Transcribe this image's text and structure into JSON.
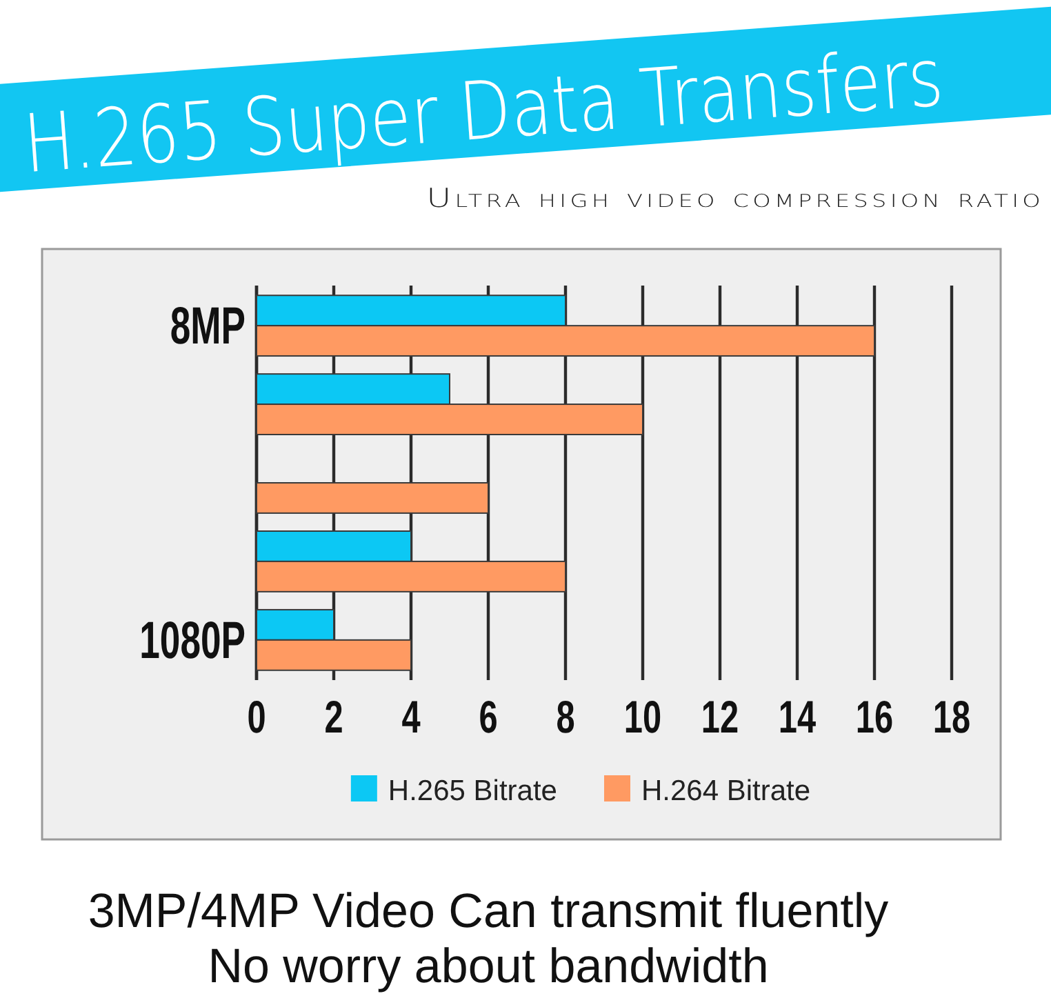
{
  "chart_data": {
    "type": "bar",
    "orientation": "horizontal",
    "title": "H.265 Super Data Transfers",
    "subtitle": "Ultra high video compression ratio",
    "categories": [
      "8MP",
      null,
      null,
      null,
      "1080P"
    ],
    "series": [
      {
        "name": "H.265 Bitrate",
        "color": "#0cc8f4",
        "values": [
          8,
          5,
          null,
          4,
          2
        ]
      },
      {
        "name": "H.264 Bitrate",
        "color": "#ff9a62",
        "values": [
          16,
          10,
          6,
          8,
          4
        ]
      }
    ],
    "xlim": [
      0,
      18
    ],
    "xticks": [
      0,
      2,
      4,
      6,
      8,
      10,
      12,
      14,
      16,
      18
    ],
    "grid": "x",
    "legend": "bottom",
    "annotations": [
      "3MP/4MP Video Can transmit fluently",
      "No worry about bandwidth"
    ]
  }
}
